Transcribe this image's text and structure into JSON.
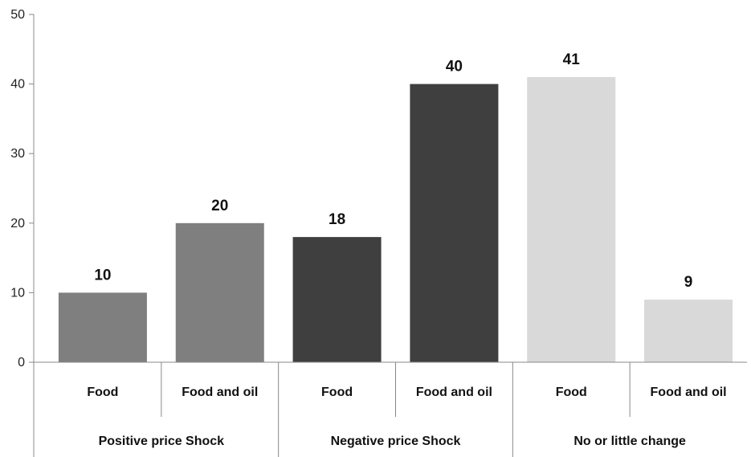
{
  "chart_data": {
    "type": "bar",
    "title": "",
    "xlabel": "",
    "ylabel": "",
    "ylim": [
      0,
      50
    ],
    "yticks": [
      0,
      10,
      20,
      30,
      40,
      50
    ],
    "grid": false,
    "legend": "none",
    "groups": [
      {
        "label": "Positive price Shock",
        "color": "#7f7f7f",
        "bars": [
          {
            "category": "Food",
            "value": 10
          },
          {
            "category": "Food and oil",
            "value": 20
          }
        ]
      },
      {
        "label": "Negative price Shock",
        "color": "#3f3f3f",
        "bars": [
          {
            "category": "Food",
            "value": 18
          },
          {
            "category": "Food and oil",
            "value": 40
          }
        ]
      },
      {
        "label": "No or little change",
        "color": "#d9d9d9",
        "bars": [
          {
            "category": "Food",
            "value": 41
          },
          {
            "category": "Food and oil",
            "value": 9
          }
        ]
      }
    ]
  }
}
